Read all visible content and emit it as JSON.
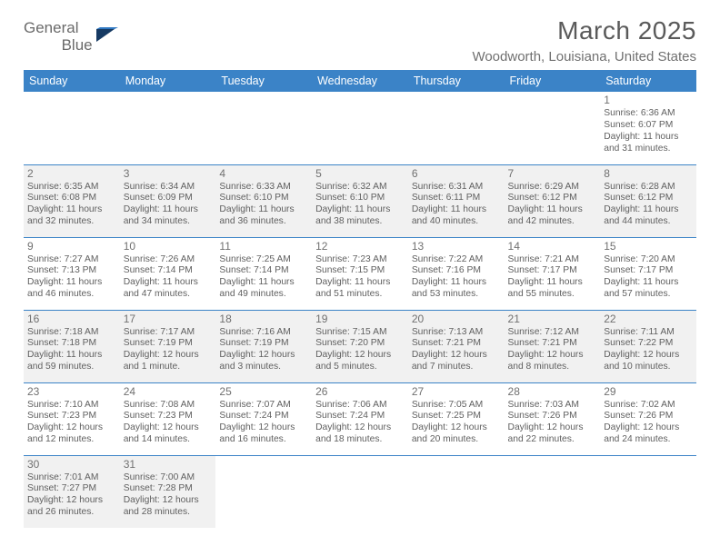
{
  "brand": {
    "name1": "General",
    "name2": "Blue"
  },
  "title": "March 2025",
  "location": "Woodworth, Louisiana, United States",
  "colors": {
    "header_bg": "#3b83c7",
    "shade_bg": "#f1f1f1",
    "rule": "#3b83c7"
  },
  "dayHeaders": [
    "Sunday",
    "Monday",
    "Tuesday",
    "Wednesday",
    "Thursday",
    "Friday",
    "Saturday"
  ],
  "weeks": [
    [
      null,
      null,
      null,
      null,
      null,
      null,
      {
        "n": "1",
        "sr": "Sunrise: 6:36 AM",
        "ss": "Sunset: 6:07 PM",
        "dl": "Daylight: 11 hours and 31 minutes."
      }
    ],
    [
      {
        "n": "2",
        "sr": "Sunrise: 6:35 AM",
        "ss": "Sunset: 6:08 PM",
        "dl": "Daylight: 11 hours and 32 minutes."
      },
      {
        "n": "3",
        "sr": "Sunrise: 6:34 AM",
        "ss": "Sunset: 6:09 PM",
        "dl": "Daylight: 11 hours and 34 minutes."
      },
      {
        "n": "4",
        "sr": "Sunrise: 6:33 AM",
        "ss": "Sunset: 6:10 PM",
        "dl": "Daylight: 11 hours and 36 minutes."
      },
      {
        "n": "5",
        "sr": "Sunrise: 6:32 AM",
        "ss": "Sunset: 6:10 PM",
        "dl": "Daylight: 11 hours and 38 minutes."
      },
      {
        "n": "6",
        "sr": "Sunrise: 6:31 AM",
        "ss": "Sunset: 6:11 PM",
        "dl": "Daylight: 11 hours and 40 minutes."
      },
      {
        "n": "7",
        "sr": "Sunrise: 6:29 AM",
        "ss": "Sunset: 6:12 PM",
        "dl": "Daylight: 11 hours and 42 minutes."
      },
      {
        "n": "8",
        "sr": "Sunrise: 6:28 AM",
        "ss": "Sunset: 6:12 PM",
        "dl": "Daylight: 11 hours and 44 minutes."
      }
    ],
    [
      {
        "n": "9",
        "sr": "Sunrise: 7:27 AM",
        "ss": "Sunset: 7:13 PM",
        "dl": "Daylight: 11 hours and 46 minutes."
      },
      {
        "n": "10",
        "sr": "Sunrise: 7:26 AM",
        "ss": "Sunset: 7:14 PM",
        "dl": "Daylight: 11 hours and 47 minutes."
      },
      {
        "n": "11",
        "sr": "Sunrise: 7:25 AM",
        "ss": "Sunset: 7:14 PM",
        "dl": "Daylight: 11 hours and 49 minutes."
      },
      {
        "n": "12",
        "sr": "Sunrise: 7:23 AM",
        "ss": "Sunset: 7:15 PM",
        "dl": "Daylight: 11 hours and 51 minutes."
      },
      {
        "n": "13",
        "sr": "Sunrise: 7:22 AM",
        "ss": "Sunset: 7:16 PM",
        "dl": "Daylight: 11 hours and 53 minutes."
      },
      {
        "n": "14",
        "sr": "Sunrise: 7:21 AM",
        "ss": "Sunset: 7:17 PM",
        "dl": "Daylight: 11 hours and 55 minutes."
      },
      {
        "n": "15",
        "sr": "Sunrise: 7:20 AM",
        "ss": "Sunset: 7:17 PM",
        "dl": "Daylight: 11 hours and 57 minutes."
      }
    ],
    [
      {
        "n": "16",
        "sr": "Sunrise: 7:18 AM",
        "ss": "Sunset: 7:18 PM",
        "dl": "Daylight: 11 hours and 59 minutes."
      },
      {
        "n": "17",
        "sr": "Sunrise: 7:17 AM",
        "ss": "Sunset: 7:19 PM",
        "dl": "Daylight: 12 hours and 1 minute."
      },
      {
        "n": "18",
        "sr": "Sunrise: 7:16 AM",
        "ss": "Sunset: 7:19 PM",
        "dl": "Daylight: 12 hours and 3 minutes."
      },
      {
        "n": "19",
        "sr": "Sunrise: 7:15 AM",
        "ss": "Sunset: 7:20 PM",
        "dl": "Daylight: 12 hours and 5 minutes."
      },
      {
        "n": "20",
        "sr": "Sunrise: 7:13 AM",
        "ss": "Sunset: 7:21 PM",
        "dl": "Daylight: 12 hours and 7 minutes."
      },
      {
        "n": "21",
        "sr": "Sunrise: 7:12 AM",
        "ss": "Sunset: 7:21 PM",
        "dl": "Daylight: 12 hours and 8 minutes."
      },
      {
        "n": "22",
        "sr": "Sunrise: 7:11 AM",
        "ss": "Sunset: 7:22 PM",
        "dl": "Daylight: 12 hours and 10 minutes."
      }
    ],
    [
      {
        "n": "23",
        "sr": "Sunrise: 7:10 AM",
        "ss": "Sunset: 7:23 PM",
        "dl": "Daylight: 12 hours and 12 minutes."
      },
      {
        "n": "24",
        "sr": "Sunrise: 7:08 AM",
        "ss": "Sunset: 7:23 PM",
        "dl": "Daylight: 12 hours and 14 minutes."
      },
      {
        "n": "25",
        "sr": "Sunrise: 7:07 AM",
        "ss": "Sunset: 7:24 PM",
        "dl": "Daylight: 12 hours and 16 minutes."
      },
      {
        "n": "26",
        "sr": "Sunrise: 7:06 AM",
        "ss": "Sunset: 7:24 PM",
        "dl": "Daylight: 12 hours and 18 minutes."
      },
      {
        "n": "27",
        "sr": "Sunrise: 7:05 AM",
        "ss": "Sunset: 7:25 PM",
        "dl": "Daylight: 12 hours and 20 minutes."
      },
      {
        "n": "28",
        "sr": "Sunrise: 7:03 AM",
        "ss": "Sunset: 7:26 PM",
        "dl": "Daylight: 12 hours and 22 minutes."
      },
      {
        "n": "29",
        "sr": "Sunrise: 7:02 AM",
        "ss": "Sunset: 7:26 PM",
        "dl": "Daylight: 12 hours and 24 minutes."
      }
    ],
    [
      {
        "n": "30",
        "sr": "Sunrise: 7:01 AM",
        "ss": "Sunset: 7:27 PM",
        "dl": "Daylight: 12 hours and 26 minutes."
      },
      {
        "n": "31",
        "sr": "Sunrise: 7:00 AM",
        "ss": "Sunset: 7:28 PM",
        "dl": "Daylight: 12 hours and 28 minutes."
      },
      null,
      null,
      null,
      null,
      null
    ]
  ]
}
